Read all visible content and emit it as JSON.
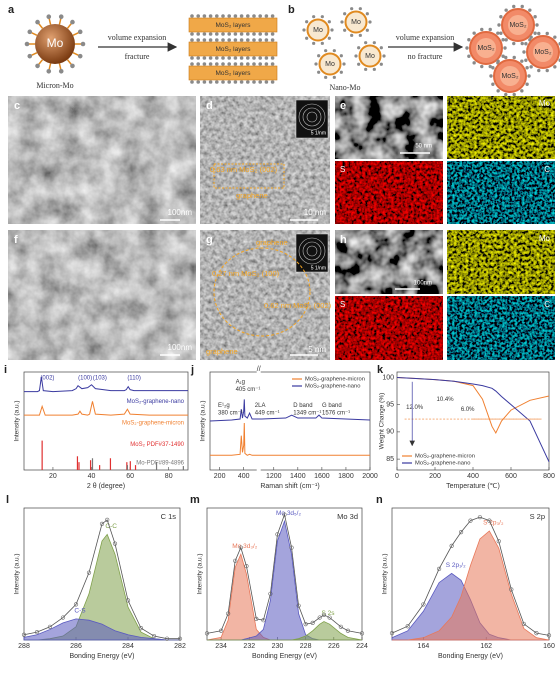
{
  "panel_labels": [
    "a",
    "b",
    "c",
    "d",
    "e",
    "f",
    "g",
    "h",
    "i",
    "j",
    "k",
    "l",
    "m",
    "n"
  ],
  "schematic": {
    "a": {
      "core": "Mo",
      "caption": "Micron-Mo",
      "arrow_top": "volume expansion",
      "arrow_bottom": "fracture",
      "layers": [
        "MoS₂ layers",
        "MoS₂ layers",
        "MoS₂ layers"
      ]
    },
    "b": {
      "cores": [
        "Mo",
        "Mo",
        "Mo",
        "Mo"
      ],
      "caption": "Nano-Mo",
      "arrow_top": "volume expansion",
      "arrow_bottom": "no fracture",
      "products": [
        "MoS₂",
        "MoS₂",
        "MoS₂",
        "MoS₂"
      ]
    }
  },
  "micrographs": {
    "c": {
      "scale_bar": "100nm"
    },
    "d": {
      "spacing": "0.63 nm MoS₂ (002)",
      "layer": "graphene",
      "scale_bar": "10 nm",
      "inset_scale": "5 1/nm"
    },
    "e": {
      "scale_bar": "50 nm",
      "maps": [
        "Mo",
        "S",
        "C"
      ]
    },
    "f": {
      "scale_bar": "100nm"
    },
    "g": {
      "layer_top": "graphene",
      "spacing_1": "0.27 nm MoS₂ (100)",
      "spacing_2": "0.62 nm MoS₂ (002)",
      "layer_bottom": "graphene",
      "scale_bar": "5 nm",
      "inset_scale": "5 1/nm"
    },
    "h": {
      "scale_bar": "100nm",
      "maps": [
        "Mo",
        "S",
        "C"
      ]
    }
  },
  "chart_data": [
    {
      "type": "line",
      "xlabel": "2 θ (degree)",
      "ylabel": "Intensity (a.u.)",
      "xlim": [
        5,
        90
      ],
      "xticks": [
        20,
        40,
        60,
        80
      ],
      "ylim": [
        0,
        100
      ],
      "legend": "inline",
      "annotations": [
        "(002)",
        "(100)",
        "(103)",
        "(110)"
      ],
      "series": [
        {
          "name": "MoS₂-graphene-nano",
          "color": "#3a3aa0",
          "x": [
            5,
            12,
            13,
            14,
            15,
            20,
            30,
            32,
            33,
            35,
            38,
            40,
            42,
            50,
            57,
            58,
            59,
            60,
            62,
            70,
            90
          ],
          "values": [
            80,
            80,
            81,
            95,
            81,
            80,
            81,
            83,
            86,
            83,
            84,
            87,
            83,
            81,
            81,
            82,
            85,
            82,
            81,
            81,
            81
          ]
        },
        {
          "name": "MoS₂-graphene-micron",
          "color": "#f08030",
          "x": [
            5,
            13,
            14.4,
            16,
            30,
            33,
            34,
            35,
            38,
            39,
            40.5,
            42,
            50,
            57,
            58.6,
            60,
            70,
            90
          ],
          "values": [
            56,
            56,
            65,
            56,
            56,
            57,
            60,
            57,
            56,
            57,
            70,
            57,
            56,
            57,
            62,
            57,
            56,
            56
          ]
        },
        {
          "name": "MoS₂ PDF#37-1490",
          "color": "#e03030",
          "style": "stick",
          "x": [
            14.4,
            32.7,
            33.5,
            39.5,
            44.2,
            49.8,
            58.3,
            60.1,
            62.8
          ],
          "values": [
            30,
            14,
            8,
            10,
            5,
            12,
            8,
            9,
            5
          ]
        },
        {
          "name": "Mo-PDF#89-4896",
          "color": "#777777",
          "style": "stick",
          "x": [
            40.5,
            58.6,
            73.7,
            87.6
          ],
          "values": [
            12,
            5,
            8,
            4
          ]
        }
      ]
    },
    {
      "type": "line",
      "xlabel": "Raman shift (cm⁻¹)",
      "ylabel": "Intensity (a.u.)",
      "xlim": [
        [
          120,
          500
        ],
        [
          1100,
          2000
        ]
      ],
      "xticks": [
        200,
        400,
        1200,
        1400,
        1600,
        1800,
        2000
      ],
      "ylim": [
        0,
        100
      ],
      "legend": "upper right",
      "annotations": [
        "E¹₂g",
        "380 cm⁻¹",
        "A₁g",
        "405 cm⁻¹",
        "2LA",
        "449 cm⁻¹",
        "D band",
        "1349 cm⁻¹",
        "G band",
        "1576 cm⁻¹"
      ],
      "series": [
        {
          "name": "MoS₂-graphene-micron",
          "color": "#f08030",
          "x": [
            120,
            300,
            370,
            380,
            390,
            400,
            405,
            410,
            430,
            449,
            470,
            500,
            1100,
            1400,
            2000
          ],
          "values": [
            15,
            15,
            16,
            35,
            18,
            25,
            48,
            17,
            15,
            16,
            15,
            15,
            15,
            15,
            15
          ]
        },
        {
          "name": "MoS₂-graphene-nano",
          "color": "#3a3aa0",
          "x": [
            120,
            300,
            370,
            380,
            390,
            400,
            405,
            410,
            430,
            449,
            470,
            500,
            1100,
            1300,
            1349,
            1400,
            1550,
            1576,
            1600,
            1800,
            2000
          ],
          "values": [
            50,
            51,
            52,
            62,
            53,
            60,
            72,
            55,
            53,
            58,
            52,
            52,
            52,
            53,
            56,
            53,
            53,
            56,
            53,
            52,
            51
          ]
        }
      ]
    },
    {
      "type": "line",
      "xlabel": "Temperature (℃)",
      "ylabel": "Weight Change (%)",
      "xlim": [
        0,
        800
      ],
      "xticks": [
        0,
        200,
        400,
        600,
        800
      ],
      "ylim": [
        83,
        101
      ],
      "yticks": [
        85,
        90,
        95,
        100
      ],
      "legend": "lower left",
      "annotations": [
        "12.0%",
        "10.4%",
        "6.0%"
      ],
      "series": [
        {
          "name": "MoS₂-graphene-micron",
          "color": "#f08030",
          "x": [
            0,
            100,
            200,
            300,
            400,
            450,
            500,
            520,
            550,
            600,
            700,
            800
          ],
          "values": [
            100,
            99.8,
            99.6,
            99.3,
            98.5,
            96,
            91,
            89.8,
            92,
            94,
            95.8,
            96.6
          ]
        },
        {
          "name": "MoS₂-graphene-nano",
          "color": "#3a3aa0",
          "x": [
            0,
            100,
            200,
            300,
            400,
            450,
            500,
            520,
            550,
            600,
            700,
            800
          ],
          "values": [
            100,
            99.8,
            99.6,
            99.3,
            98.8,
            98.5,
            98,
            97.5,
            96.5,
            95,
            92,
            84.5
          ]
        }
      ]
    },
    {
      "type": "line",
      "title": "C 1s",
      "xlabel": "Bonding Energy (eV)",
      "ylabel": "Intensity (a.u.)",
      "xlim": [
        288,
        282
      ],
      "xticks": [
        288,
        286,
        284,
        282
      ],
      "ylim": [
        0,
        100
      ],
      "legend": "peak",
      "series": [
        {
          "name": "C-C",
          "color": "#7fa04a",
          "style": "fill",
          "x": [
            288,
            287.5,
            287,
            286.5,
            286,
            285.5,
            285,
            284.8,
            284.5,
            284,
            283.5,
            283,
            282.5,
            282
          ],
          "values": [
            0,
            0,
            1,
            3,
            10,
            35,
            75,
            80,
            65,
            25,
            6,
            1,
            0,
            0
          ]
        },
        {
          "name": "C-S",
          "color": "#5a5ac0",
          "style": "fill",
          "x": [
            288,
            287.5,
            287,
            286.5,
            286,
            285.5,
            285,
            284.8,
            284.5,
            284,
            283.5,
            283,
            282.5,
            282
          ],
          "values": [
            2,
            4,
            8,
            13,
            16,
            15,
            12,
            10,
            7,
            4,
            2,
            1,
            0,
            0
          ]
        },
        {
          "color": "#666666",
          "style": "points",
          "x": [
            288,
            287.5,
            287,
            286.5,
            286,
            285.5,
            285,
            284.8,
            284.5,
            284,
            283.5,
            283,
            282.5,
            282
          ],
          "values": [
            4,
            6,
            10,
            17,
            27,
            51,
            88,
            91,
            73,
            30,
            9,
            3,
            1,
            1
          ]
        }
      ]
    },
    {
      "type": "line",
      "title": "Mo 3d",
      "xlabel": "Bonding Energy (eV)",
      "ylabel": "Intensity (a.u.)",
      "xlim": [
        235,
        224
      ],
      "xticks": [
        234,
        232,
        230,
        228,
        226,
        224
      ],
      "ylim": [
        0,
        100
      ],
      "legend": "peak",
      "series": [
        {
          "name": "Mo 3d₃/₂",
          "color": "#e8785a",
          "style": "fill",
          "x": [
            235,
            234,
            233.5,
            233,
            232.6,
            232.2,
            231.5,
            231,
            230.5,
            230,
            229.5,
            229,
            228.5,
            228,
            227.5,
            227,
            226.7,
            226.3,
            225.5,
            225,
            224
          ],
          "values": [
            0,
            2,
            15,
            55,
            65,
            50,
            8,
            2,
            0,
            0,
            0,
            0,
            0,
            0,
            0,
            0,
            0,
            0,
            0,
            0,
            0
          ]
        },
        {
          "name": "Mo 3d₅/₂",
          "color": "#5a5ac0",
          "style": "fill",
          "x": [
            235,
            234,
            233.5,
            233,
            232.6,
            232.2,
            231.5,
            231,
            230.5,
            230,
            229.5,
            229,
            228.5,
            228,
            227.5,
            227,
            226.7,
            226.3,
            225.5,
            225,
            224
          ],
          "values": [
            0,
            0,
            0,
            0,
            0,
            1,
            3,
            8,
            30,
            75,
            90,
            65,
            20,
            4,
            1,
            0,
            0,
            0,
            0,
            0,
            0
          ]
        },
        {
          "name": "S 2s",
          "color": "#7fa04a",
          "style": "fill",
          "x": [
            235,
            234,
            233.5,
            233,
            232.6,
            232.2,
            231.5,
            231,
            230.5,
            230,
            229.5,
            229,
            228.5,
            228,
            227.5,
            227,
            226.7,
            226.3,
            225.5,
            225,
            224
          ],
          "values": [
            0,
            0,
            0,
            0,
            0,
            0,
            0,
            0,
            0,
            0,
            0,
            0,
            1,
            3,
            7,
            12,
            14,
            12,
            5,
            2,
            0
          ]
        },
        {
          "color": "#666666",
          "style": "points",
          "x": [
            235,
            234,
            233.5,
            233,
            232.6,
            232.2,
            231.5,
            231,
            230.5,
            230,
            229.5,
            229,
            228.5,
            228,
            227.5,
            227,
            226.7,
            226.3,
            225.5,
            225,
            224
          ],
          "values": [
            5,
            7,
            20,
            60,
            70,
            56,
            16,
            15,
            35,
            80,
            95,
            70,
            26,
            12,
            13,
            17,
            19,
            17,
            10,
            7,
            5
          ]
        }
      ]
    },
    {
      "type": "line",
      "title": "S 2p",
      "xlabel": "Bonding Energy (eV)",
      "ylabel": "Intensity (a.u.)",
      "xlim": [
        165,
        160
      ],
      "xticks": [
        164,
        162,
        160
      ],
      "ylim": [
        0,
        115
      ],
      "legend": "peak",
      "series": [
        {
          "name": "S 2p₁/₂",
          "color": "#5a5ac0",
          "style": "fill",
          "x": [
            165,
            164.5,
            164,
            163.5,
            163.1,
            162.8,
            162.5,
            162.2,
            161.9,
            161.6,
            161.2,
            160.8,
            160.4,
            160
          ],
          "values": [
            2,
            8,
            25,
            50,
            58,
            52,
            35,
            15,
            5,
            2,
            0,
            0,
            0,
            0
          ]
        },
        {
          "name": "S 2p₃/₂",
          "color": "#e8785a",
          "style": "fill",
          "x": [
            165,
            164.5,
            164,
            163.5,
            163.1,
            162.8,
            162.5,
            162.2,
            161.9,
            161.6,
            161.2,
            160.8,
            160.4,
            160
          ],
          "values": [
            0,
            0,
            2,
            8,
            20,
            38,
            65,
            88,
            95,
            80,
            40,
            10,
            2,
            0
          ]
        },
        {
          "color": "#666666",
          "style": "points",
          "x": [
            165,
            164.5,
            164,
            163.5,
            163.1,
            162.8,
            162.5,
            162.2,
            161.9,
            161.6,
            161.2,
            160.8,
            160.4,
            160
          ],
          "values": [
            6,
            12,
            31,
            62,
            82,
            94,
            104,
            107,
            104,
            86,
            44,
            14,
            6,
            4
          ]
        }
      ]
    }
  ]
}
